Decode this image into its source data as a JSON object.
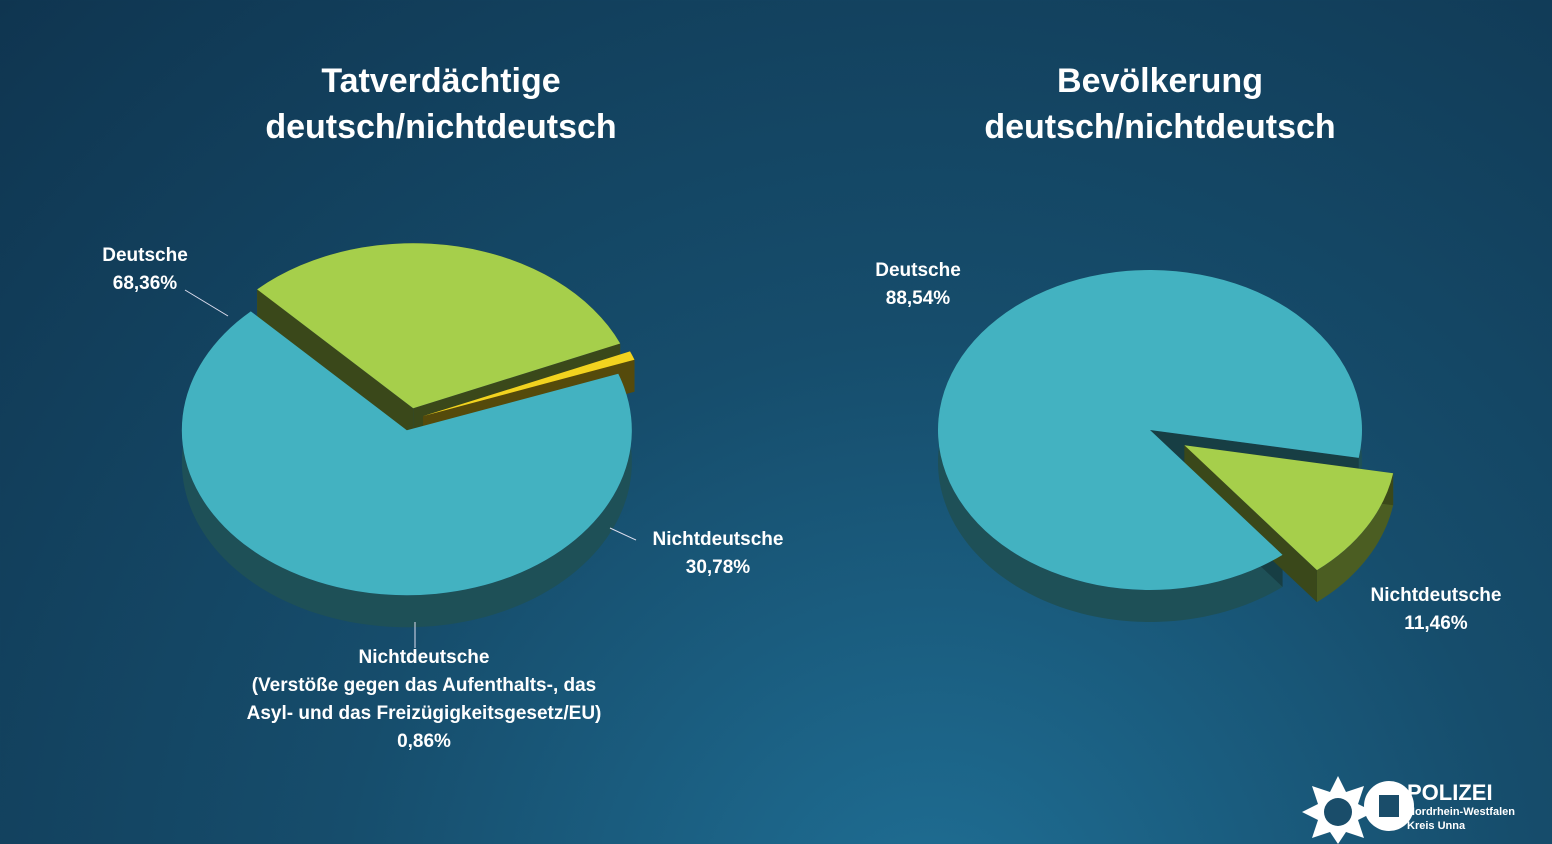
{
  "chart_data": [
    {
      "type": "pie",
      "title": "Tatverdächtige\ndeutsch/nichtdeutsch",
      "categories": [
        "Deutsche",
        "Nichtdeutsche",
        "Nichtdeutsche\n(Verstöße gegen das Aufenthalts-, das\nAsyl- und das Freizügigkeitsgesetz/EU)"
      ],
      "values": [
        68.36,
        30.78,
        0.86
      ],
      "value_labels": [
        "68,36%",
        "30,78%",
        "0,86%"
      ],
      "colors": [
        "#43b2c1",
        "#a6cf4b",
        "#f2d31f"
      ]
    },
    {
      "type": "pie",
      "title": "Bevölkerung\ndeutsch/nichtdeutsch",
      "categories": [
        "Deutsche",
        "Nichtdeutsche"
      ],
      "values": [
        88.54,
        11.46
      ],
      "value_labels": [
        "88,54%",
        "11,46%"
      ],
      "colors": [
        "#43b2c1",
        "#a6cf4b"
      ]
    }
  ],
  "logo": {
    "name": "POLIZEI",
    "line1": "Nordrhein-Westfalen",
    "line2": "Kreis Unna"
  }
}
